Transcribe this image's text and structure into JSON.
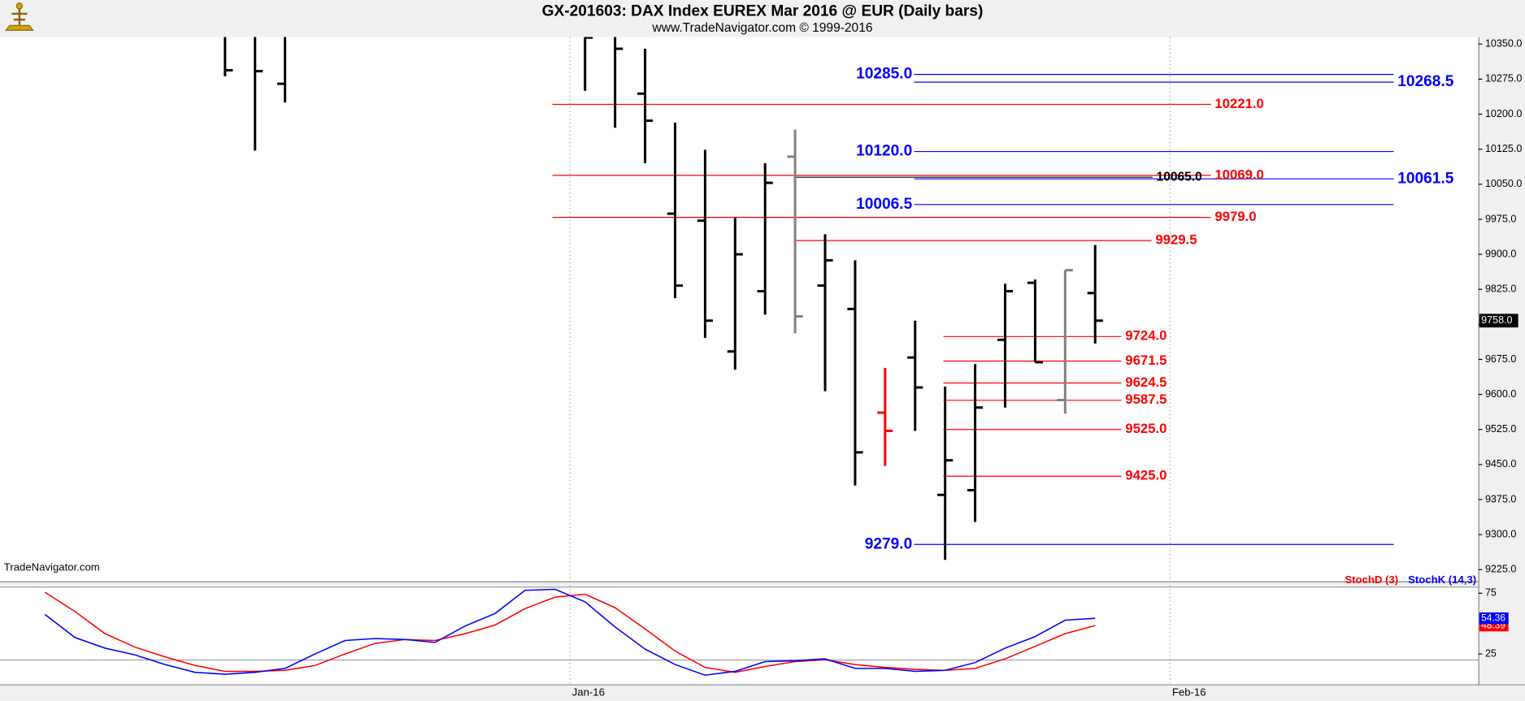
{
  "chart_data": [
    {
      "type": "ohlc",
      "title": "GX-201603:  DAX Index EUREX Mar 2016 @ EUR  (Daily bars)",
      "subtitle": "www.TradeNavigator.com © 1999-2016",
      "watermark": "TradeNavigator.com",
      "categories": [
        null,
        null,
        null,
        null,
        null,
        null,
        null,
        null,
        null,
        null,
        null,
        null,
        null,
        null,
        null,
        null,
        null,
        null,
        null,
        null,
        null,
        null,
        null,
        null,
        null,
        null,
        null,
        null,
        null,
        null,
        null,
        null,
        null,
        null,
        null,
        null,
        null,
        null,
        null,
        null,
        null,
        null,
        null,
        null,
        null,
        null,
        null,
        null,
        null
      ],
      "open": [
        null,
        null,
        null,
        null,
        null,
        null,
        null,
        null,
        null,
        10265,
        null,
        null,
        null,
        null,
        null,
        null,
        null,
        null,
        null,
        null,
        null,
        10244,
        9987,
        9972,
        9692,
        9821,
        10109,
        9833,
        9783,
        9561,
        9679,
        9385,
        9395,
        9717,
        9839,
        9588,
        9817,
        null,
        null,
        null,
        null,
        null,
        null,
        null,
        null,
        null,
        null,
        null,
        null
      ],
      "high": [
        null,
        null,
        null,
        null,
        null,
        null,
        null,
        10400,
        10400,
        10400,
        null,
        null,
        null,
        null,
        null,
        null,
        null,
        null,
        null,
        10380,
        10380,
        10340,
        10182,
        10124,
        9978,
        10095,
        10167,
        9943,
        9887,
        9657,
        9758,
        9617,
        9665,
        9837,
        9846,
        9866,
        9920,
        null,
        null,
        null,
        null,
        null,
        null,
        null,
        null,
        null,
        null,
        null,
        null
      ],
      "low": [
        null,
        null,
        null,
        null,
        null,
        null,
        null,
        10281,
        10122,
        10225,
        null,
        null,
        null,
        null,
        null,
        null,
        null,
        null,
        null,
        10250,
        10171,
        10095,
        9806,
        9721,
        9653,
        9771,
        9731,
        9607,
        9405,
        9447,
        9522,
        9246,
        9327,
        9572,
        9669,
        9559,
        9709,
        null,
        null,
        null,
        null,
        null,
        null,
        null,
        null,
        null,
        null,
        null,
        null
      ],
      "close": [
        null,
        null,
        null,
        null,
        null,
        null,
        null,
        10294,
        10292,
        null,
        null,
        null,
        null,
        null,
        null,
        null,
        null,
        null,
        null,
        10364,
        10340,
        10186,
        9833,
        9758,
        9900,
        10053,
        9767,
        9887,
        9476,
        9522,
        9615,
        9459,
        9572,
        9821,
        9669,
        9866,
        9758,
        null,
        null,
        null,
        null,
        null,
        null,
        null,
        null,
        null,
        null,
        null,
        null
      ],
      "colors": [
        null,
        null,
        null,
        null,
        null,
        null,
        null,
        "#000000",
        "#000000",
        "#000000",
        null,
        null,
        null,
        null,
        null,
        null,
        null,
        null,
        null,
        "#000000",
        "#000000",
        "#000000",
        "#000000",
        "#000000",
        "#000000",
        "#000000",
        "#808080",
        "#000000",
        "#000000",
        "#ff0000",
        "#000000",
        "#000000",
        "#000000",
        "#000000",
        "#000000",
        "#808080",
        "#000000",
        null,
        null,
        null,
        null,
        null,
        null,
        null,
        null,
        null,
        null,
        null,
        null
      ],
      "last_label": "9758.0",
      "ylim": [
        9200,
        10365
      ],
      "yticks": [
        {
          "value": 9225,
          "label": "9225.0"
        },
        {
          "value": 9300,
          "label": "9300.0"
        },
        {
          "value": 9375,
          "label": "9375.0"
        },
        {
          "value": 9450,
          "label": "9450.0"
        },
        {
          "value": 9525,
          "label": "9525.0"
        },
        {
          "value": 9600,
          "label": "9600.0"
        },
        {
          "value": 9675,
          "label": "9675.0"
        },
        {
          "value": 9750,
          "label": "9750.0"
        },
        {
          "value": 9825,
          "label": "9825.0"
        },
        {
          "value": 9900,
          "label": "9900.0"
        },
        {
          "value": 9975,
          "label": "9975.0"
        },
        {
          "value": 10050,
          "label": "10050.0"
        },
        {
          "value": 10125,
          "label": "10125.0"
        },
        {
          "value": 10200,
          "label": "10200.0"
        },
        {
          "value": 10275,
          "label": "10275.0"
        },
        {
          "value": 10350,
          "label": "10350.0"
        }
      ],
      "levels": [
        {
          "value": 10285,
          "label": "10285.0",
          "color": "#0000ff"
        },
        {
          "value": 10268.5,
          "label": "10268.5",
          "color": "#0000ff"
        },
        {
          "value": 10120,
          "label": "10120.0",
          "color": "#0000ff"
        },
        {
          "value": 10061.5,
          "label": "10061.5",
          "color": "#0000ff"
        },
        {
          "value": 10006.5,
          "label": "10006.5",
          "color": "#0000ff"
        },
        {
          "value": 9279,
          "label": "9279.0",
          "color": "#0000ff"
        },
        {
          "value": 10221,
          "label": "10221.0",
          "color": "#ff0000"
        },
        {
          "value": 10069,
          "label": "10069.0",
          "color": "#ff0000"
        },
        {
          "value": 10065,
          "label": "10065.0",
          "color": "#000000"
        },
        {
          "value": 9979,
          "label": "9979.0",
          "color": "#ff0000"
        },
        {
          "value": 9929.5,
          "label": "9929.5",
          "color": "#ff0000"
        },
        {
          "value": 9724,
          "label": "9724.0",
          "color": "#ff0000"
        },
        {
          "value": 9671.5,
          "label": "9671.5",
          "color": "#ff0000"
        },
        {
          "value": 9624.5,
          "label": "9624.5",
          "color": "#ff0000"
        },
        {
          "value": 9587.5,
          "label": "9587.5",
          "color": "#ff0000"
        },
        {
          "value": 9525,
          "label": "9525.0",
          "color": "#ff0000"
        },
        {
          "value": 9425,
          "label": "9425.0",
          "color": "#ff0000"
        }
      ]
    },
    {
      "type": "line",
      "categories": [
        null,
        null,
        null,
        null,
        null,
        null,
        null,
        null,
        null,
        null,
        null,
        null,
        null,
        null,
        null,
        null,
        null,
        null,
        null,
        null,
        null,
        null,
        null,
        null,
        null,
        null,
        null,
        null,
        null,
        null,
        null,
        null,
        null,
        null,
        null,
        null,
        null,
        null,
        null,
        null,
        null,
        null,
        null,
        null,
        null,
        null,
        null,
        null,
        null
      ],
      "series": [
        {
          "name": "StochD (3)",
          "color": "#ff0000",
          "last_label": "48.39",
          "values": [
            null,
            75.8,
            59.9,
            41.7,
            30.6,
            22.6,
            15.5,
            10.7,
            10.7,
            11.5,
            15.5,
            25,
            33.7,
            36.9,
            36.1,
            41.7,
            48.8,
            62.3,
            71.8,
            74.2,
            63.1,
            45.6,
            27.4,
            13.9,
            9.9,
            14.7,
            18.7,
            20.2,
            16.3,
            13.9,
            12.3,
            11.5,
            13.1,
            21,
            31.3,
            41.7,
            48.39,
            null,
            null,
            null,
            null,
            null,
            null,
            null,
            null,
            null,
            null,
            null,
            null
          ]
        },
        {
          "name": "StochK (14,3)",
          "color": "#0000ff",
          "last_label": "54.36",
          "values": [
            null,
            57.5,
            38.5,
            29.8,
            24.2,
            16.3,
            9.9,
            8.3,
            9.9,
            13.1,
            25,
            36.1,
            37.7,
            36.9,
            34.5,
            48,
            58.3,
            77.4,
            78.2,
            67.9,
            47.2,
            29,
            16.3,
            7.5,
            10.7,
            18.7,
            19.4,
            21,
            13.1,
            13.1,
            10.7,
            11.5,
            17.9,
            29.8,
            39.3,
            52.8,
            54.36,
            null,
            null,
            null,
            null,
            null,
            null,
            null,
            null,
            null,
            null,
            null,
            null
          ]
        }
      ],
      "ylim": [
        0,
        80
      ],
      "yticks": [
        25,
        75
      ],
      "ref_lines": [
        20,
        80
      ],
      "xticks": [
        {
          "value": 18.5,
          "label": "Jan-16"
        },
        {
          "value": 38.5,
          "label": "Feb-16"
        }
      ]
    }
  ]
}
